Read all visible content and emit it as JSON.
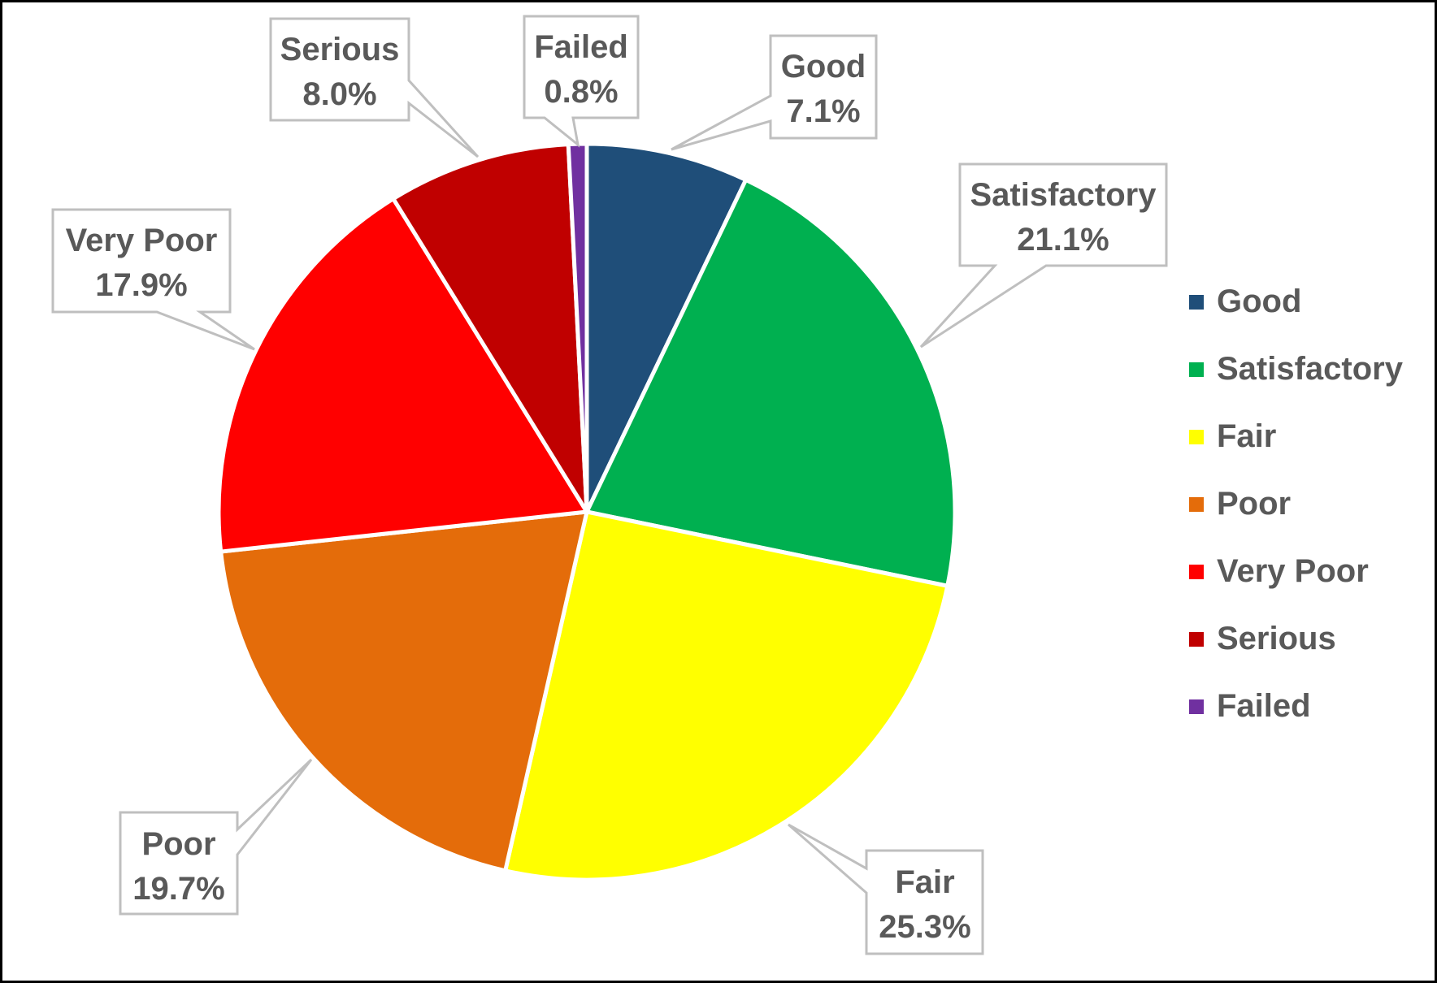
{
  "chart_data": {
    "type": "pie",
    "title": "",
    "categories": [
      "Good",
      "Satisfactory",
      "Fair",
      "Poor",
      "Very Poor",
      "Serious",
      "Failed"
    ],
    "values": [
      7.1,
      21.1,
      25.3,
      19.7,
      17.9,
      8.0,
      0.8
    ],
    "value_labels": [
      "7.1%",
      "21.1%",
      "25.3%",
      "19.7%",
      "17.9%",
      "8.0%",
      "0.8%"
    ],
    "colors": [
      "#1F4E79",
      "#00B050",
      "#FFFF00",
      "#E46C0A",
      "#FF0000",
      "#C00000",
      "#7030A0"
    ],
    "start_angle": "12 o'clock",
    "direction": "clockwise",
    "data_labels": "callout boxes with category name and percentage",
    "legend_position": "right"
  },
  "legend": {
    "items": [
      {
        "label": "Good",
        "color": "#1F4E79"
      },
      {
        "label": "Satisfactory",
        "color": "#00B050"
      },
      {
        "label": "Fair",
        "color": "#FFFF00"
      },
      {
        "label": "Poor",
        "color": "#E46C0A"
      },
      {
        "label": "Very Poor",
        "color": "#FF0000"
      },
      {
        "label": "Serious",
        "color": "#C00000"
      },
      {
        "label": "Failed",
        "color": "#7030A0"
      }
    ]
  },
  "callouts": [
    {
      "name": "Good",
      "value": "7.1%"
    },
    {
      "name": "Satisfactory",
      "value": "21.1%"
    },
    {
      "name": "Fair",
      "value": "25.3%"
    },
    {
      "name": "Poor",
      "value": "19.7%"
    },
    {
      "name": "Very Poor",
      "value": "17.9%"
    },
    {
      "name": "Serious",
      "value": "8.0%"
    },
    {
      "name": "Failed",
      "value": "0.8%"
    }
  ]
}
